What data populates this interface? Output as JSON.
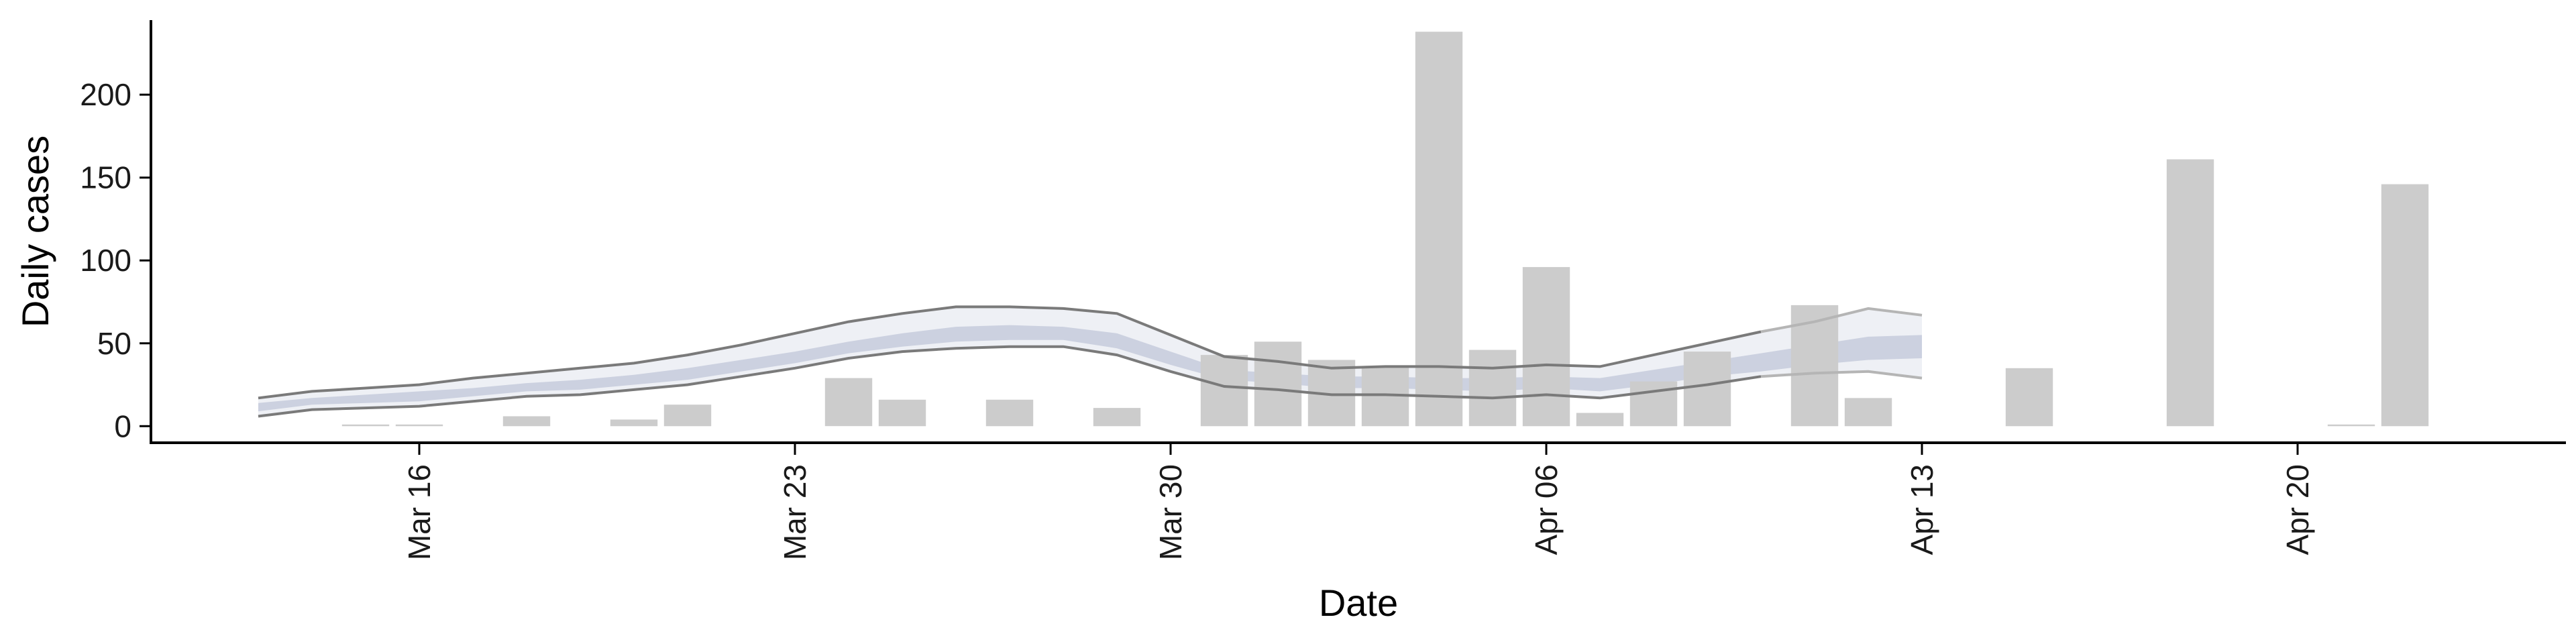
{
  "chart_data": {
    "type": "bar",
    "title": "",
    "xlabel": "Date",
    "ylabel": "Daily cases",
    "x_unit": "date (2020)",
    "xlim": [
      "2020-03-11",
      "2020-04-25"
    ],
    "ylim": [
      -10,
      245
    ],
    "yticks": [
      0,
      50,
      100,
      150,
      200
    ],
    "xticks": [
      {
        "date": "2020-03-16",
        "label": "Mar 16"
      },
      {
        "date": "2020-03-23",
        "label": "Mar 23"
      },
      {
        "date": "2020-03-30",
        "label": "Mar 30"
      },
      {
        "date": "2020-04-06",
        "label": "Apr 06"
      },
      {
        "date": "2020-04-13",
        "label": "Apr 13"
      },
      {
        "date": "2020-04-20",
        "label": "Apr 20"
      }
    ],
    "grid": false,
    "legend": "none",
    "colors": {
      "bars": "#cccccc",
      "outer_band": "#eef0f5",
      "inner_band": "#c5cbdc",
      "band_lines": "#7a7a7a",
      "forecast_lines": "#b5b5b5"
    },
    "bars": [
      {
        "date": "2020-03-15",
        "value": 1
      },
      {
        "date": "2020-03-16",
        "value": 1
      },
      {
        "date": "2020-03-18",
        "value": 6
      },
      {
        "date": "2020-03-20",
        "value": 4
      },
      {
        "date": "2020-03-21",
        "value": 13
      },
      {
        "date": "2020-03-24",
        "value": 29
      },
      {
        "date": "2020-03-25",
        "value": 16
      },
      {
        "date": "2020-03-27",
        "value": 16
      },
      {
        "date": "2020-03-29",
        "value": 11
      },
      {
        "date": "2020-03-31",
        "value": 43
      },
      {
        "date": "2020-04-01",
        "value": 51
      },
      {
        "date": "2020-04-02",
        "value": 40
      },
      {
        "date": "2020-04-03",
        "value": 36
      },
      {
        "date": "2020-04-04",
        "value": 238
      },
      {
        "date": "2020-04-05",
        "value": 46
      },
      {
        "date": "2020-04-06",
        "value": 96
      },
      {
        "date": "2020-04-07",
        "value": 8
      },
      {
        "date": "2020-04-08",
        "value": 27
      },
      {
        "date": "2020-04-09",
        "value": 45
      },
      {
        "date": "2020-04-11",
        "value": 73
      },
      {
        "date": "2020-04-12",
        "value": 17
      },
      {
        "date": "2020-04-15",
        "value": 35
      },
      {
        "date": "2020-04-18",
        "value": 161
      },
      {
        "date": "2020-04-21",
        "value": 1
      },
      {
        "date": "2020-04-22",
        "value": 146
      }
    ],
    "band": {
      "dates": [
        "2020-03-13",
        "2020-03-14",
        "2020-03-15",
        "2020-03-16",
        "2020-03-17",
        "2020-03-18",
        "2020-03-19",
        "2020-03-20",
        "2020-03-21",
        "2020-03-22",
        "2020-03-23",
        "2020-03-24",
        "2020-03-25",
        "2020-03-26",
        "2020-03-27",
        "2020-03-28",
        "2020-03-29",
        "2020-03-30",
        "2020-03-31",
        "2020-04-01",
        "2020-04-02",
        "2020-04-03",
        "2020-04-04",
        "2020-04-05",
        "2020-04-06",
        "2020-04-07",
        "2020-04-08",
        "2020-04-09",
        "2020-04-10",
        "2020-04-11",
        "2020-04-12",
        "2020-04-13"
      ],
      "outer_upper": [
        17,
        21,
        23,
        25,
        29,
        32,
        35,
        38,
        43,
        49,
        56,
        63,
        68,
        72,
        72,
        71,
        68,
        55,
        42,
        39,
        35,
        36,
        36,
        35,
        37,
        36,
        43,
        50,
        57,
        63,
        71,
        67
      ],
      "outer_lower": [
        6,
        10,
        11,
        12,
        15,
        18,
        19,
        22,
        25,
        30,
        35,
        41,
        45,
        47,
        48,
        48,
        43,
        33,
        24,
        22,
        19,
        19,
        18,
        17,
        19,
        17,
        21,
        25,
        30,
        32,
        33,
        29
      ],
      "inner_upper": [
        14,
        17,
        19,
        21,
        23,
        26,
        28,
        31,
        35,
        40,
        45,
        51,
        56,
        60,
        61,
        60,
        56,
        45,
        34,
        32,
        30,
        30,
        29,
        29,
        30,
        29,
        34,
        39,
        44,
        49,
        54,
        55
      ],
      "inner_lower": [
        9,
        13,
        14,
        15,
        18,
        21,
        22,
        25,
        28,
        33,
        38,
        44,
        48,
        51,
        52,
        52,
        47,
        37,
        28,
        26,
        23,
        23,
        22,
        21,
        23,
        21,
        25,
        30,
        33,
        37,
        40,
        41
      ],
      "observed_until": "2020-04-10"
    }
  }
}
